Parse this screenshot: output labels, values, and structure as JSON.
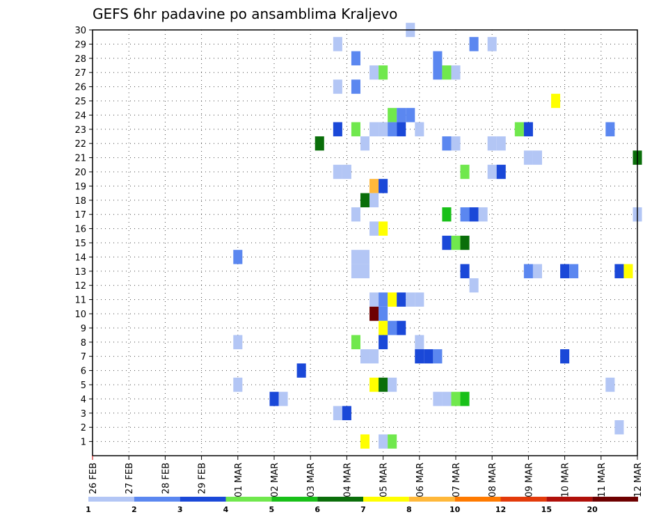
{
  "chart_data": {
    "type": "heatmap",
    "title": "GEFS 6hr padavine po ansamblima Kraljevo",
    "xlabel": "",
    "ylabel": "",
    "x_tick_labels": [
      "26 FEB",
      "27 FEB",
      "28 FEB",
      "29 FEB",
      "01 MAR",
      "02 MAR",
      "03 MAR",
      "04 MAR",
      "05 MAR",
      "06 MAR",
      "07 MAR",
      "08 MAR",
      "09 MAR",
      "10 MAR",
      "11 MAR",
      "12 MAR"
    ],
    "y_tick_labels": [
      "1",
      "2",
      "3",
      "4",
      "5",
      "6",
      "7",
      "8",
      "9",
      "10",
      "11",
      "12",
      "13",
      "14",
      "15",
      "16",
      "17",
      "18",
      "19",
      "20",
      "21",
      "22",
      "23",
      "24",
      "25",
      "26",
      "27",
      "28",
      "29",
      "30"
    ],
    "x_range_steps": [
      0,
      60
    ],
    "y_range": [
      0,
      30
    ],
    "steps_per_day": 4,
    "grid": true,
    "colorbar": {
      "labels": [
        "1",
        "2",
        "3",
        "4",
        "5",
        "6",
        "7",
        "8",
        "10",
        "12",
        "15",
        "20"
      ],
      "colors": [
        "#b3c6f5",
        "#5b87f0",
        "#1a48d8",
        "#70e84d",
        "#18c018",
        "#0a6e0a",
        "#ffff00",
        "#ffb83a",
        "#ff7a00",
        "#e33a0a",
        "#b0100a",
        "#6e0000"
      ]
    },
    "cells": [
      {
        "t": 35,
        "m": 30,
        "c": 0
      },
      {
        "t": 27,
        "m": 29,
        "c": 0
      },
      {
        "t": 42,
        "m": 29,
        "c": 1
      },
      {
        "t": 44,
        "m": 29,
        "c": 0
      },
      {
        "t": 29,
        "m": 28,
        "c": 1
      },
      {
        "t": 38,
        "m": 28,
        "c": 1
      },
      {
        "t": 31,
        "m": 27,
        "c": 0
      },
      {
        "t": 32,
        "m": 27,
        "c": 3
      },
      {
        "t": 38,
        "m": 27,
        "c": 1
      },
      {
        "t": 39,
        "m": 27,
        "c": 3
      },
      {
        "t": 40,
        "m": 27,
        "c": 0
      },
      {
        "t": 27,
        "m": 26,
        "c": 0
      },
      {
        "t": 29,
        "m": 26,
        "c": 1
      },
      {
        "t": 51,
        "m": 25,
        "c": 6
      },
      {
        "t": 33,
        "m": 24,
        "c": 3
      },
      {
        "t": 34,
        "m": 24,
        "c": 1
      },
      {
        "t": 35,
        "m": 24,
        "c": 1
      },
      {
        "t": 27,
        "m": 23,
        "c": 2
      },
      {
        "t": 29,
        "m": 23,
        "c": 3
      },
      {
        "t": 31,
        "m": 23,
        "c": 0
      },
      {
        "t": 32,
        "m": 23,
        "c": 0
      },
      {
        "t": 33,
        "m": 23,
        "c": 1
      },
      {
        "t": 34,
        "m": 23,
        "c": 2
      },
      {
        "t": 36,
        "m": 23,
        "c": 0
      },
      {
        "t": 47,
        "m": 23,
        "c": 3
      },
      {
        "t": 48,
        "m": 23,
        "c": 2
      },
      {
        "t": 57,
        "m": 23,
        "c": 1
      },
      {
        "t": 25,
        "m": 22,
        "c": 5
      },
      {
        "t": 30,
        "m": 22,
        "c": 0
      },
      {
        "t": 39,
        "m": 22,
        "c": 1
      },
      {
        "t": 40,
        "m": 22,
        "c": 0
      },
      {
        "t": 44,
        "m": 22,
        "c": 0
      },
      {
        "t": 45,
        "m": 22,
        "c": 0
      },
      {
        "t": 48,
        "m": 21,
        "c": 0
      },
      {
        "t": 49,
        "m": 21,
        "c": 0
      },
      {
        "t": 60,
        "m": 21,
        "c": 5
      },
      {
        "t": 27,
        "m": 20,
        "c": 0
      },
      {
        "t": 28,
        "m": 20,
        "c": 0
      },
      {
        "t": 41,
        "m": 20,
        "c": 3
      },
      {
        "t": 44,
        "m": 20,
        "c": 0
      },
      {
        "t": 45,
        "m": 20,
        "c": 2
      },
      {
        "t": 31,
        "m": 19,
        "c": 7
      },
      {
        "t": 32,
        "m": 19,
        "c": 2
      },
      {
        "t": 30,
        "m": 18,
        "c": 5
      },
      {
        "t": 31,
        "m": 18,
        "c": 0
      },
      {
        "t": 29,
        "m": 17,
        "c": 0
      },
      {
        "t": 39,
        "m": 17,
        "c": 4
      },
      {
        "t": 41,
        "m": 17,
        "c": 1
      },
      {
        "t": 42,
        "m": 17,
        "c": 2
      },
      {
        "t": 43,
        "m": 17,
        "c": 0
      },
      {
        "t": 60,
        "m": 17,
        "c": 0
      },
      {
        "t": 31,
        "m": 16,
        "c": 0
      },
      {
        "t": 32,
        "m": 16,
        "c": 6
      },
      {
        "t": 39,
        "m": 15,
        "c": 2
      },
      {
        "t": 40,
        "m": 15,
        "c": 3
      },
      {
        "t": 41,
        "m": 15,
        "c": 5
      },
      {
        "t": 16,
        "m": 14,
        "c": 1
      },
      {
        "t": 29,
        "m": 14,
        "c": 0
      },
      {
        "t": 30,
        "m": 14,
        "c": 0
      },
      {
        "t": 29,
        "m": 13,
        "c": 0
      },
      {
        "t": 30,
        "m": 13,
        "c": 0
      },
      {
        "t": 41,
        "m": 13,
        "c": 2
      },
      {
        "t": 48,
        "m": 13,
        "c": 1
      },
      {
        "t": 49,
        "m": 13,
        "c": 0
      },
      {
        "t": 52,
        "m": 13,
        "c": 2
      },
      {
        "t": 53,
        "m": 13,
        "c": 1
      },
      {
        "t": 58,
        "m": 13,
        "c": 2
      },
      {
        "t": 59,
        "m": 13,
        "c": 6
      },
      {
        "t": 42,
        "m": 12,
        "c": 0
      },
      {
        "t": 31,
        "m": 11,
        "c": 0
      },
      {
        "t": 32,
        "m": 11,
        "c": 1
      },
      {
        "t": 33,
        "m": 11,
        "c": 6
      },
      {
        "t": 34,
        "m": 11,
        "c": 2
      },
      {
        "t": 35,
        "m": 11,
        "c": 0
      },
      {
        "t": 36,
        "m": 11,
        "c": 0
      },
      {
        "t": 32,
        "m": 10,
        "c": 1
      },
      {
        "t": 31,
        "m": 10,
        "c": 11
      },
      {
        "t": 32,
        "m": 9,
        "c": 6
      },
      {
        "t": 33,
        "m": 9,
        "c": 1
      },
      {
        "t": 34,
        "m": 9,
        "c": 2
      },
      {
        "t": 16,
        "m": 8,
        "c": 0
      },
      {
        "t": 29,
        "m": 8,
        "c": 3
      },
      {
        "t": 32,
        "m": 8,
        "c": 2
      },
      {
        "t": 36,
        "m": 8,
        "c": 0
      },
      {
        "t": 30,
        "m": 7,
        "c": 0
      },
      {
        "t": 31,
        "m": 7,
        "c": 0
      },
      {
        "t": 36,
        "m": 7,
        "c": 2
      },
      {
        "t": 37,
        "m": 7,
        "c": 2
      },
      {
        "t": 38,
        "m": 7,
        "c": 1
      },
      {
        "t": 52,
        "m": 7,
        "c": 2
      },
      {
        "t": 23,
        "m": 6,
        "c": 2
      },
      {
        "t": 16,
        "m": 5,
        "c": 0
      },
      {
        "t": 31,
        "m": 5,
        "c": 6
      },
      {
        "t": 32,
        "m": 5,
        "c": 5
      },
      {
        "t": 33,
        "m": 5,
        "c": 0
      },
      {
        "t": 57,
        "m": 5,
        "c": 0
      },
      {
        "t": 20,
        "m": 4,
        "c": 2
      },
      {
        "t": 21,
        "m": 4,
        "c": 0
      },
      {
        "t": 38,
        "m": 4,
        "c": 0
      },
      {
        "t": 39,
        "m": 4,
        "c": 0
      },
      {
        "t": 40,
        "m": 4,
        "c": 3
      },
      {
        "t": 41,
        "m": 4,
        "c": 4
      },
      {
        "t": 27,
        "m": 3,
        "c": 0
      },
      {
        "t": 28,
        "m": 3,
        "c": 2
      },
      {
        "t": 58,
        "m": 2,
        "c": 0
      },
      {
        "t": 30,
        "m": 1,
        "c": 6
      },
      {
        "t": 32,
        "m": 1,
        "c": 0
      },
      {
        "t": 33,
        "m": 1,
        "c": 3
      }
    ]
  }
}
